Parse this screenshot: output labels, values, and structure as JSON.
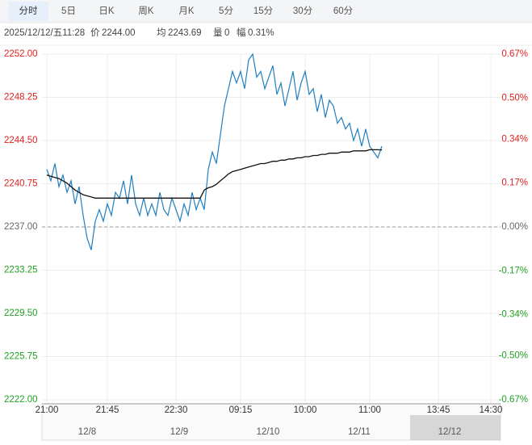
{
  "tabs": [
    "分时",
    "5日",
    "日K",
    "周K",
    "月K",
    "5分",
    "15分",
    "30分",
    "60分"
  ],
  "chart_data": {
    "type": "line",
    "info": {
      "time": "2025/12/12/五11:28",
      "price_label": "价",
      "price": "2244.00",
      "avg_label": "均",
      "avg": "2243.69",
      "volume_label": "量",
      "volume": "0",
      "range_label": "幅",
      "range": "0.31%"
    },
    "x": [
      0,
      1,
      2,
      3,
      4,
      5,
      6,
      7,
      8,
      9,
      10,
      11,
      12,
      13,
      14,
      15,
      16,
      17,
      18,
      19,
      20,
      21,
      22,
      23,
      24,
      25,
      26,
      27,
      28,
      29,
      30,
      31,
      32,
      33,
      34,
      35,
      36,
      37,
      38,
      39,
      40,
      41,
      42,
      43,
      44,
      45,
      46,
      47,
      48,
      49,
      50,
      51,
      52,
      53,
      54,
      55,
      56,
      57,
      58,
      59,
      60,
      61,
      62,
      63,
      64,
      65,
      66,
      67,
      68,
      69,
      70,
      71,
      72,
      73,
      74,
      75,
      76,
      77,
      78,
      79,
      80,
      81,
      82,
      83
    ],
    "series": [
      {
        "name": "价",
        "color": "#1f7fc0",
        "values": [
          2242.0,
          2241.0,
          2242.5,
          2240.5,
          2241.5,
          2240.0,
          2241.0,
          2239.0,
          2240.5,
          2238.0,
          2236.0,
          2235.0,
          2237.5,
          2238.5,
          2237.5,
          2239.0,
          2238.0,
          2240.0,
          2239.5,
          2241.0,
          2239.0,
          2241.5,
          2239.0,
          2238.0,
          2239.5,
          2238.0,
          2239.0,
          2238.0,
          2240.0,
          2238.5,
          2238.0,
          2239.5,
          2238.5,
          2237.5,
          2239.0,
          2238.0,
          2240.0,
          2238.5,
          2239.5,
          2238.5,
          2242.0,
          2243.5,
          2242.5,
          2245.0,
          2247.5,
          2249.0,
          2250.5,
          2249.5,
          2250.5,
          2249.0,
          2251.5,
          2252.0,
          2250.0,
          2250.5,
          2249.0,
          2250.0,
          2251.0,
          2248.5,
          2249.5,
          2247.5,
          2249.0,
          2250.5,
          2248.0,
          2249.5,
          2250.5,
          2248.5,
          2249.0,
          2247.0,
          2248.5,
          2246.5,
          2248.0,
          2247.5,
          2246.0,
          2246.5,
          2245.5,
          2246.0,
          2244.5,
          2245.5,
          2244.0,
          2245.5,
          2244.0,
          2243.5,
          2243.0,
          2244.0
        ]
      },
      {
        "name": "均",
        "color": "#111111",
        "values": [
          2241.5,
          2241.4,
          2241.3,
          2241.2,
          2241.0,
          2240.8,
          2240.5,
          2240.2,
          2240.0,
          2239.8,
          2239.7,
          2239.6,
          2239.5,
          2239.5,
          2239.5,
          2239.5,
          2239.5,
          2239.5,
          2239.5,
          2239.5,
          2239.5,
          2239.5,
          2239.5,
          2239.5,
          2239.5,
          2239.5,
          2239.5,
          2239.5,
          2239.5,
          2239.5,
          2239.5,
          2239.5,
          2239.5,
          2239.5,
          2239.5,
          2239.5,
          2239.5,
          2239.5,
          2239.5,
          2240.2,
          2240.4,
          2240.5,
          2240.7,
          2241.0,
          2241.3,
          2241.6,
          2241.8,
          2241.9,
          2242.0,
          2242.1,
          2242.2,
          2242.3,
          2242.4,
          2242.5,
          2242.5,
          2242.6,
          2242.7,
          2242.7,
          2242.8,
          2242.8,
          2242.9,
          2242.9,
          2243.0,
          2243.0,
          2243.1,
          2243.1,
          2243.2,
          2243.2,
          2243.3,
          2243.3,
          2243.4,
          2243.4,
          2243.4,
          2243.5,
          2243.5,
          2243.5,
          2243.6,
          2243.6,
          2243.6,
          2243.6,
          2243.7,
          2243.7,
          2243.7,
          2243.69
        ]
      }
    ],
    "xlim": [
      0,
      110
    ],
    "xticks": [
      {
        "value": 0,
        "label": "21:00"
      },
      {
        "value": 15,
        "label": "21:45"
      },
      {
        "value": 32,
        "label": "22:30"
      },
      {
        "value": 48,
        "label": "09:15"
      },
      {
        "value": 64,
        "label": "10:00"
      },
      {
        "value": 80,
        "label": "11:00"
      },
      {
        "value": 97,
        "label": "13:45"
      },
      {
        "value": 110,
        "label": "14:30"
      }
    ],
    "ylim": [
      2222,
      2252
    ],
    "yticks": [
      {
        "value": 2252,
        "label": "2252.00"
      },
      {
        "value": 2248.25,
        "label": "2248.25"
      },
      {
        "value": 2244.5,
        "label": "2244.50"
      },
      {
        "value": 2240.75,
        "label": "2240.75"
      },
      {
        "value": 2237,
        "label": "2237.00"
      },
      {
        "value": 2233.25,
        "label": "2233.25"
      },
      {
        "value": 2229.5,
        "label": "2229.50"
      },
      {
        "value": 2225.75,
        "label": "2225.75"
      },
      {
        "value": 2222,
        "label": "2222.00"
      }
    ],
    "y2lim": [
      -0.67,
      0.67
    ],
    "y2ticks": [
      {
        "value": 0.67,
        "label": "0.67%"
      },
      {
        "value": 0.5,
        "label": "0.50%"
      },
      {
        "value": 0.34,
        "label": "0.34%"
      },
      {
        "value": 0.17,
        "label": "0.17%"
      },
      {
        "value": 0,
        "label": "0.00%"
      },
      {
        "value": -0.17,
        "label": "-0.17%"
      },
      {
        "value": -0.34,
        "label": "-0.34%"
      },
      {
        "value": -0.5,
        "label": "-0.50%"
      },
      {
        "value": -0.67,
        "label": "-0.67%"
      }
    ],
    "reference_line": 2237,
    "up_color": "#e02020",
    "down_color": "#20a020",
    "flat_color": "#666666",
    "grid": true,
    "navigator_dates": [
      "12/8",
      "12/9",
      "12/10",
      "12/11",
      "12/12"
    ]
  }
}
